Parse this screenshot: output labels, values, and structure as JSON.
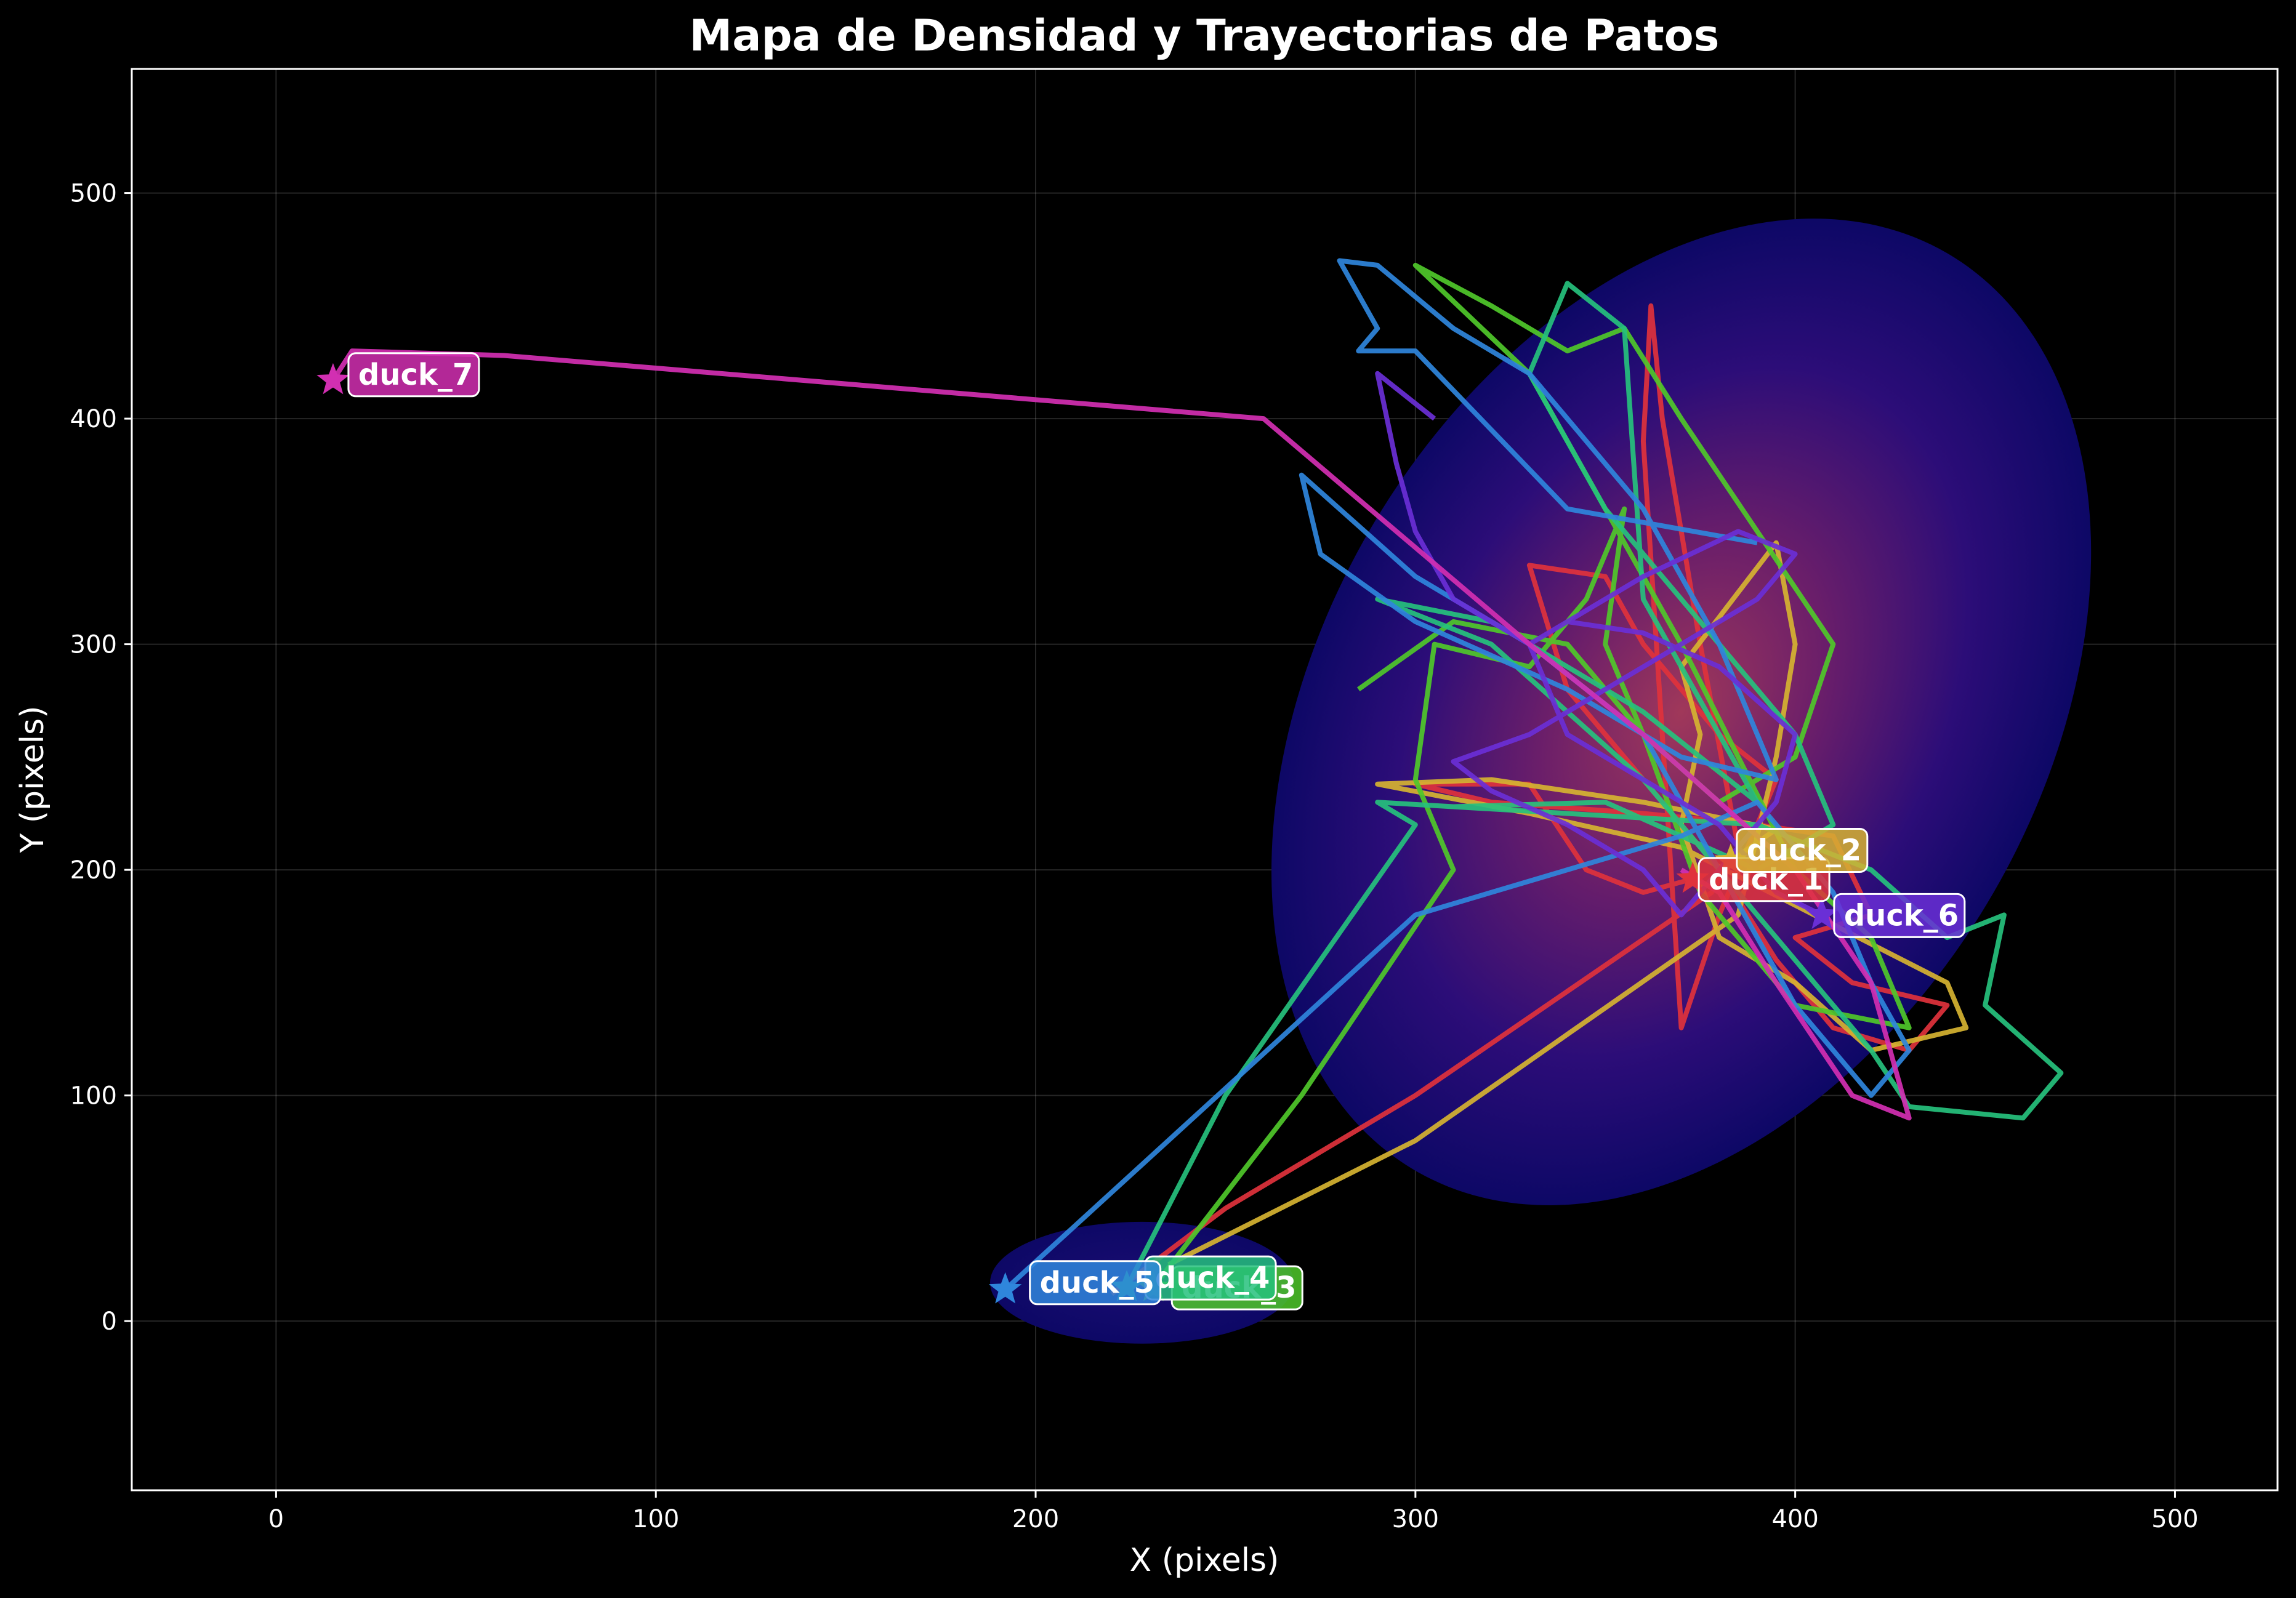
{
  "chart_data": {
    "type": "line",
    "title": "Mapa de Densidad y Trayectorias de Patos",
    "xlabel": "X (pixels)",
    "ylabel": "Y (pixels)",
    "xlim": [
      -38,
      527
    ],
    "ylim": [
      -75,
      555
    ],
    "xticks": [
      0,
      100,
      200,
      300,
      400,
      500
    ],
    "yticks": [
      0,
      100,
      200,
      300,
      400,
      500
    ],
    "grid": true,
    "background": "#000000",
    "density": {
      "colormap": "plasma",
      "base_color": "#0d0866",
      "hot_color": "#7a1e5a",
      "regions": [
        {
          "cx": 370,
          "cy": 270,
          "rx": 95,
          "ry": 235,
          "rotation_deg": 30
        },
        {
          "cx": 228,
          "cy": 17,
          "rx": 40,
          "ry": 27,
          "rotation_deg": 0
        }
      ]
    },
    "series": [
      {
        "name": "duck_1",
        "color": "#e0323c",
        "start": [
          373,
          196
        ],
        "points": [
          [
            373,
            196
          ],
          [
            360,
            190
          ],
          [
            345,
            200
          ],
          [
            330,
            238
          ],
          [
            300,
            238
          ],
          [
            320,
            230
          ],
          [
            360,
            225
          ],
          [
            390,
            220
          ],
          [
            410,
            215
          ],
          [
            420,
            180
          ],
          [
            400,
            170
          ],
          [
            415,
            150
          ],
          [
            440,
            140
          ],
          [
            430,
            120
          ],
          [
            410,
            130
          ],
          [
            395,
            160
          ],
          [
            380,
            200
          ],
          [
            365,
            230
          ],
          [
            340,
            280
          ],
          [
            330,
            335
          ],
          [
            350,
            330
          ],
          [
            360,
            300
          ],
          [
            380,
            260
          ],
          [
            395,
            240
          ],
          [
            380,
            180
          ],
          [
            370,
            130
          ],
          [
            360,
            390
          ],
          [
            362,
            450
          ],
          [
            365,
            400
          ],
          [
            375,
            300
          ],
          [
            385,
            210
          ],
          [
            378,
            190
          ],
          [
            300,
            100
          ],
          [
            250,
            50
          ],
          [
            220,
            12
          ]
        ]
      },
      {
        "name": "duck_2",
        "color": "#d6b331",
        "start": [
          383,
          204
        ],
        "points": [
          [
            383,
            204
          ],
          [
            395,
            218
          ],
          [
            360,
            230
          ],
          [
            320,
            240
          ],
          [
            290,
            238
          ],
          [
            330,
            225
          ],
          [
            370,
            210
          ],
          [
            405,
            180
          ],
          [
            440,
            150
          ],
          [
            445,
            130
          ],
          [
            420,
            120
          ],
          [
            400,
            150
          ],
          [
            380,
            170
          ],
          [
            370,
            220
          ],
          [
            375,
            260
          ],
          [
            370,
            290
          ],
          [
            395,
            345
          ],
          [
            400,
            300
          ],
          [
            395,
            250
          ],
          [
            385,
            180
          ],
          [
            300,
            80
          ],
          [
            235,
            25
          ]
        ]
      },
      {
        "name": "duck_3",
        "color": "#4fc82a",
        "start": [
          231,
          15
        ],
        "points": [
          [
            231,
            15
          ],
          [
            270,
            100
          ],
          [
            310,
            200
          ],
          [
            300,
            240
          ],
          [
            305,
            300
          ],
          [
            330,
            290
          ],
          [
            345,
            320
          ],
          [
            355,
            360
          ],
          [
            350,
            300
          ],
          [
            360,
            260
          ],
          [
            380,
            230
          ],
          [
            400,
            250
          ],
          [
            410,
            300
          ],
          [
            390,
            350
          ],
          [
            370,
            400
          ],
          [
            355,
            440
          ],
          [
            340,
            430
          ],
          [
            320,
            450
          ],
          [
            300,
            468
          ],
          [
            330,
            420
          ],
          [
            370,
            300
          ],
          [
            400,
            200
          ],
          [
            420,
            170
          ],
          [
            430,
            130
          ],
          [
            400,
            140
          ],
          [
            375,
            190
          ],
          [
            360,
            260
          ],
          [
            340,
            300
          ],
          [
            310,
            310
          ],
          [
            285,
            280
          ]
        ]
      },
      {
        "name": "duck_4",
        "color": "#26c17d",
        "start": [
          224,
          15
        ],
        "points": [
          [
            224,
            15
          ],
          [
            250,
            100
          ],
          [
            300,
            220
          ],
          [
            290,
            230
          ],
          [
            340,
            225
          ],
          [
            390,
            220
          ],
          [
            420,
            200
          ],
          [
            440,
            170
          ],
          [
            455,
            180
          ],
          [
            450,
            140
          ],
          [
            470,
            110
          ],
          [
            460,
            90
          ],
          [
            430,
            95
          ],
          [
            420,
            120
          ],
          [
            400,
            160
          ],
          [
            380,
            200
          ],
          [
            360,
            240
          ],
          [
            340,
            270
          ],
          [
            320,
            300
          ],
          [
            290,
            320
          ],
          [
            320,
            310
          ],
          [
            360,
            270
          ],
          [
            390,
            230
          ],
          [
            360,
            320
          ],
          [
            355,
            440
          ],
          [
            340,
            460
          ],
          [
            330,
            420
          ],
          [
            350,
            360
          ],
          [
            380,
            300
          ],
          [
            400,
            260
          ],
          [
            410,
            220
          ],
          [
            390,
            200
          ],
          [
            350,
            230
          ],
          [
            310,
            228
          ],
          [
            290,
            230
          ]
        ]
      },
      {
        "name": "duck_5",
        "color": "#2f86dc",
        "start": [
          192,
          14
        ],
        "points": [
          [
            192,
            14
          ],
          [
            300,
            180
          ],
          [
            370,
            215
          ],
          [
            390,
            230
          ],
          [
            410,
            190
          ],
          [
            420,
            150
          ],
          [
            430,
            120
          ],
          [
            420,
            100
          ],
          [
            400,
            140
          ],
          [
            380,
            200
          ],
          [
            360,
            260
          ],
          [
            330,
            300
          ],
          [
            300,
            330
          ],
          [
            280,
            360
          ],
          [
            270,
            375
          ],
          [
            275,
            340
          ],
          [
            300,
            310
          ],
          [
            340,
            280
          ],
          [
            370,
            250
          ],
          [
            395,
            240
          ],
          [
            380,
            300
          ],
          [
            360,
            360
          ],
          [
            330,
            420
          ],
          [
            310,
            440
          ],
          [
            290,
            468
          ],
          [
            280,
            470
          ],
          [
            290,
            440
          ],
          [
            285,
            430
          ],
          [
            300,
            430
          ],
          [
            340,
            360
          ],
          [
            390,
            345
          ]
        ]
      },
      {
        "name": "duck_6",
        "color": "#6a2fd6",
        "start": [
          407,
          180
        ],
        "points": [
          [
            407,
            180
          ],
          [
            395,
            190
          ],
          [
            380,
            220
          ],
          [
            360,
            240
          ],
          [
            340,
            260
          ],
          [
            330,
            300
          ],
          [
            340,
            310
          ],
          [
            360,
            305
          ],
          [
            380,
            290
          ],
          [
            400,
            260
          ],
          [
            395,
            230
          ],
          [
            380,
            200
          ],
          [
            370,
            180
          ],
          [
            360,
            200
          ],
          [
            340,
            220
          ],
          [
            320,
            235
          ],
          [
            310,
            248
          ],
          [
            330,
            260
          ],
          [
            350,
            280
          ],
          [
            370,
            300
          ],
          [
            390,
            320
          ],
          [
            400,
            340
          ],
          [
            385,
            350
          ],
          [
            360,
            330
          ],
          [
            330,
            300
          ],
          [
            310,
            320
          ],
          [
            300,
            350
          ],
          [
            295,
            380
          ],
          [
            290,
            420
          ],
          [
            305,
            400
          ]
        ]
      },
      {
        "name": "duck_7",
        "color": "#d22fb2",
        "start": [
          15,
          417
        ],
        "points": [
          [
            15,
            417
          ],
          [
            20,
            430
          ],
          [
            60,
            428
          ],
          [
            260,
            400
          ],
          [
            330,
            300
          ],
          [
            360,
            260
          ],
          [
            380,
            230
          ],
          [
            400,
            200
          ],
          [
            420,
            150
          ],
          [
            430,
            90
          ],
          [
            415,
            100
          ],
          [
            395,
            150
          ],
          [
            380,
            190
          ],
          [
            370,
            200
          ]
        ]
      }
    ],
    "annotations": [
      "duck_1",
      "duck_2",
      "duck_3",
      "duck_4",
      "duck_5",
      "duck_6",
      "duck_7"
    ]
  }
}
